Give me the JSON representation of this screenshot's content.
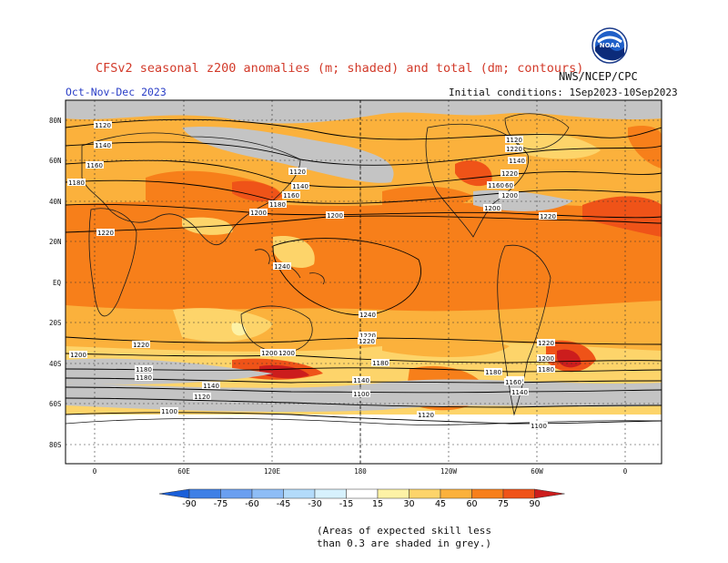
{
  "header": {
    "title": "CFSv2 seasonal z200 anomalies (m; shaded) and total (dm; contours)",
    "season": "Oct-Nov-Dec 2023",
    "agency": "NWS/NCEP/CPC",
    "initial_conditions": "Initial conditions: 1Sep2023-10Sep2023",
    "logo_text": "NOAA"
  },
  "axes": {
    "lat_labels": [
      "80N",
      "60N",
      "40N",
      "20N",
      "EQ",
      "20S",
      "40S",
      "60S",
      "80S"
    ],
    "lon_labels": [
      "0",
      "60E",
      "120E",
      "180",
      "120W",
      "60W",
      "0"
    ]
  },
  "colors": {
    "ocean": "#ffffff",
    "grey_mask": "#c4c4c4",
    "neg_90": "#1a5fd9",
    "neg_75": "#3f80e6",
    "neg_60": "#6a9ff0",
    "neg_45": "#8ebdf6",
    "neg_30": "#b3dbfa",
    "neg_15": "#d7f1fd",
    "pos_15": "#fdf2a6",
    "pos_30": "#fdd46a",
    "pos_45": "#fbb13c",
    "pos_60": "#f77f1a",
    "pos_75": "#ef5318",
    "pos_90": "#cc1d1d"
  },
  "contours": [
    {
      "label": "1120"
    },
    {
      "label": "1140"
    },
    {
      "label": "1160"
    },
    {
      "label": "1180"
    },
    {
      "label": "1200"
    },
    {
      "label": "1220"
    },
    {
      "label": "1240"
    }
  ],
  "contour_labels": [
    "1120",
    "1140",
    "1160",
    "1180",
    "1200",
    "1220",
    "1120",
    "1140",
    "1160",
    "1180",
    "1200",
    "1220",
    "1200",
    "1220",
    "1240",
    "1240",
    "1220",
    "1200",
    "1200",
    "1220",
    "1180",
    "1180",
    "1140",
    "1120",
    "1100",
    "1160",
    "1180",
    "1140",
    "1120",
    "1100",
    "1220",
    "1200",
    "1180",
    "1160",
    "1140",
    "1100",
    "1220",
    "1200",
    "1180",
    "1160",
    "1140",
    "1120",
    "1200",
    "1220",
    "1180",
    "1160"
  ],
  "colorbar": {
    "ticks": [
      "-90",
      "-75",
      "-60",
      "-45",
      "-30",
      "-15",
      "15",
      "30",
      "45",
      "60",
      "75",
      "90"
    ]
  },
  "note": {
    "line1": "(Areas of expected skill less",
    "line2": "than 0.3 are shaded in grey.)"
  }
}
